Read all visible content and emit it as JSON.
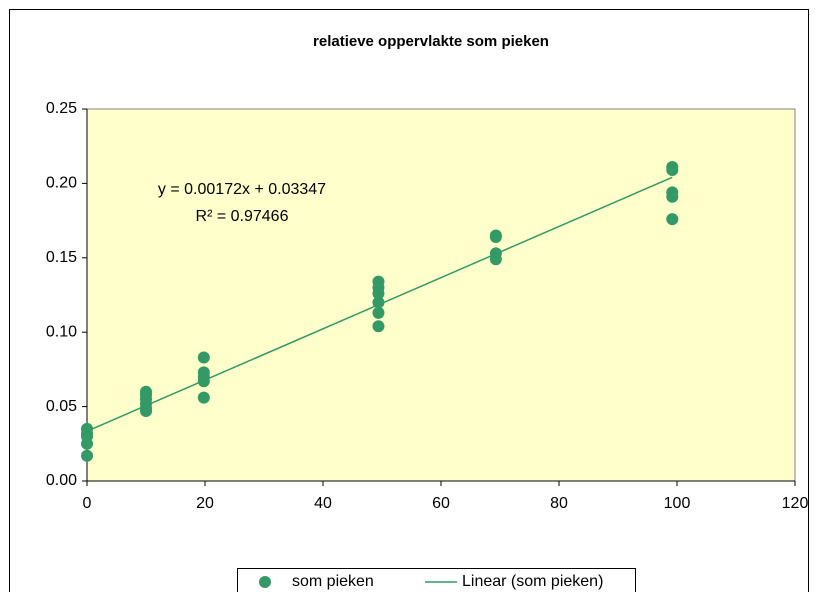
{
  "chart_data": {
    "type": "scatter",
    "title": "relatieve oppervlakte som pieken",
    "series": [
      {
        "name": "som pieken",
        "color": "#339966",
        "x": [
          0,
          0,
          0,
          0,
          0,
          10,
          10,
          10,
          10,
          10,
          10,
          19.8,
          19.8,
          19.8,
          19.8,
          19.8,
          49.4,
          49.4,
          49.4,
          49.4,
          49.4,
          49.4,
          69.3,
          69.3,
          69.3,
          69.3,
          99.2,
          99.2,
          99.2,
          99.2,
          99.2
        ],
        "values": [
          0.035,
          0.032,
          0.03,
          0.025,
          0.017,
          0.06,
          0.058,
          0.055,
          0.052,
          0.049,
          0.047,
          0.083,
          0.073,
          0.07,
          0.067,
          0.056,
          0.134,
          0.13,
          0.126,
          0.12,
          0.113,
          0.104,
          0.165,
          0.164,
          0.153,
          0.149,
          0.211,
          0.209,
          0.194,
          0.191,
          0.176
        ]
      }
    ],
    "trendline": {
      "name": "Linear (som pieken)",
      "color": "#339966",
      "slope": 0.00172,
      "intercept": 0.03347,
      "equation": "y = 0.00172x + 0.03347",
      "r_squared": "R² = 0.97466"
    },
    "xlim": [
      0,
      120
    ],
    "xticks": [
      0,
      20,
      40,
      60,
      80,
      100,
      120
    ],
    "ylim": [
      0,
      0.25
    ],
    "yticks": [
      {
        "value": 0,
        "label": "0.00"
      },
      0.05,
      {
        "value": 0.1,
        "label": "0.10"
      },
      0.15,
      {
        "value": 0.2,
        "label": "0.20"
      },
      0.25
    ],
    "grid": false,
    "plot_background": "#ffffcc",
    "legend": "bottom"
  }
}
